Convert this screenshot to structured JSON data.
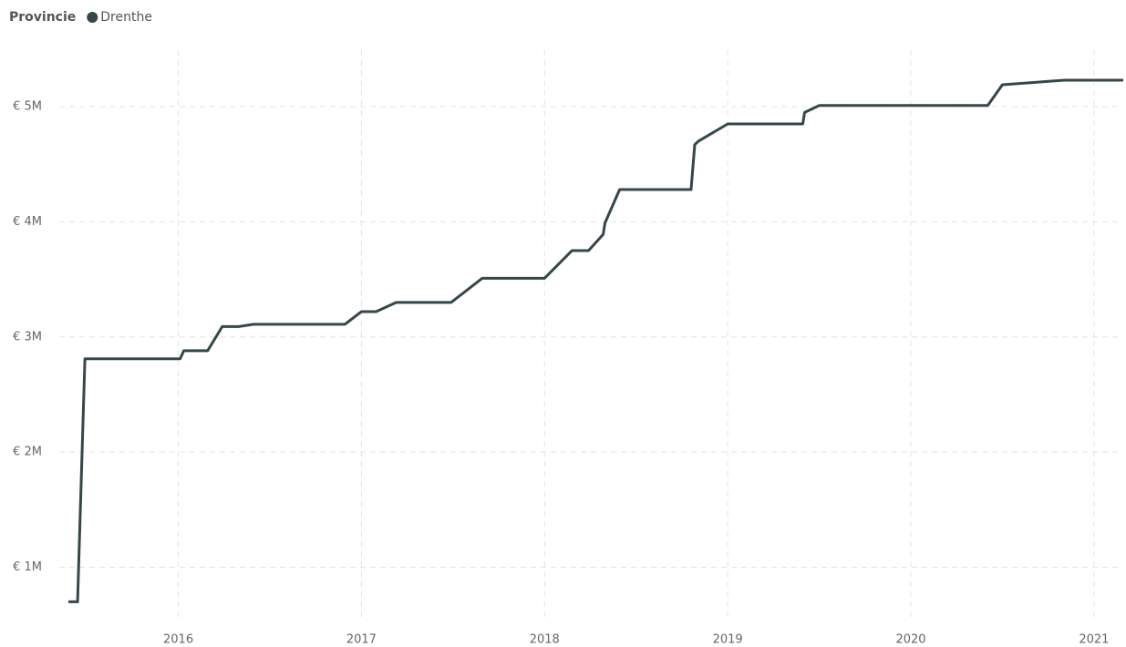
{
  "chart_data": {
    "type": "line",
    "legend_title": "Provincie",
    "legend": "top-left",
    "grid": true,
    "xlim": [
      2015.35,
      2021.16
    ],
    "xticks": [
      2016,
      2017,
      2018,
      2019,
      2020,
      2021
    ],
    "ylim": [
      545000,
      5570000
    ],
    "yticks": [
      {
        "value": 1000000,
        "label": "€ 1M"
      },
      {
        "value": 2000000,
        "label": "€ 2M"
      },
      {
        "value": 3000000,
        "label": "€ 3M"
      },
      {
        "value": 4000000,
        "label": "€ 4M"
      },
      {
        "value": 5000000,
        "label": "€ 5M"
      }
    ],
    "x": [
      2015.4,
      2015.45,
      2015.49,
      2016.01,
      2016.03,
      2016.16,
      2016.24,
      2016.33,
      2016.41,
      2016.91,
      2017.0,
      2017.08,
      2017.19,
      2017.49,
      2017.66,
      2018.0,
      2018.15,
      2018.24,
      2018.32,
      2018.33,
      2018.41,
      2018.8,
      2018.82,
      2018.84,
      2019.0,
      2019.41,
      2019.42,
      2019.5,
      2020.42,
      2020.5,
      2020.84,
      2021.16
    ],
    "series": [
      {
        "name": "Drenthe",
        "color": "#374649",
        "values": [
          700000,
          700000,
          2810000,
          2810000,
          2880000,
          2880000,
          3090000,
          3090000,
          3110000,
          3110000,
          3220000,
          3220000,
          3300000,
          3300000,
          3510000,
          3510000,
          3750000,
          3750000,
          3890000,
          3990000,
          4280000,
          4280000,
          4670000,
          4700000,
          4850000,
          4850000,
          4950000,
          5010000,
          5010000,
          5190000,
          5230000,
          5230000
        ]
      }
    ]
  }
}
